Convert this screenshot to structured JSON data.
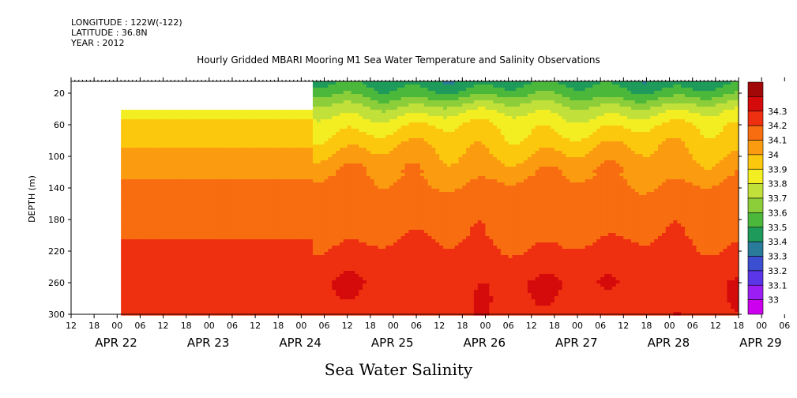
{
  "header": {
    "longitude": "LONGITUDE : 122W(-122)",
    "latitude": "LATITUDE : 36.8N",
    "year": "YEAR : 2012"
  },
  "chart_data": {
    "type": "heatmap",
    "title": "Hourly Gridded MBARI Mooring M1 Sea Water Temperature and Salinity Observations",
    "caption": "Sea Water Salinity",
    "xlabel": "",
    "ylabel": "DEPTH (m)",
    "variable": "Sea Water Salinity",
    "x_range_hours": [
      0,
      174
    ],
    "x_hour_ticks": [
      "12",
      "18",
      "00",
      "06",
      "12",
      "18",
      "00",
      "06",
      "12",
      "18",
      "00",
      "06",
      "12",
      "18",
      "00",
      "06",
      "12",
      "18",
      "00",
      "06",
      "12",
      "18",
      "00",
      "06",
      "12",
      "18",
      "00",
      "06",
      "12",
      "18",
      "00",
      "06",
      "12",
      "18",
      "00",
      "06",
      "12"
    ],
    "date_labels": [
      "APR 22",
      "APR 23",
      "APR 24",
      "APR 25",
      "APR 26",
      "APR 27",
      "APR 28",
      "APR 29"
    ],
    "ylim": [
      300,
      5
    ],
    "y_ticks": [
      20,
      60,
      100,
      140,
      180,
      220,
      260,
      300
    ],
    "colorbar": {
      "levels": [
        33,
        33.1,
        33.2,
        33.3,
        33.4,
        33.5,
        33.6,
        33.7,
        33.8,
        33.9,
        34,
        34.1,
        34.2,
        34.3
      ],
      "colors": [
        "#cc00ee",
        "#9b1ff5",
        "#5a36e8",
        "#3c4fd0",
        "#2a7a9a",
        "#1e9b5a",
        "#4cb83b",
        "#8cce3a",
        "#c2e03a",
        "#f2ee22",
        "#fcc80e",
        "#fb9c10",
        "#f86d10",
        "#ef3010",
        "#d50a0a",
        "#a30808"
      ]
    },
    "profile_early": [
      {
        "depth": 5,
        "value": null
      },
      {
        "depth": 40,
        "value": 33.85
      },
      {
        "depth": 60,
        "value": 33.92
      },
      {
        "depth": 80,
        "value": 33.97
      },
      {
        "depth": 100,
        "value": 34.03
      },
      {
        "depth": 120,
        "value": 34.08
      },
      {
        "depth": 140,
        "value": 34.12
      },
      {
        "depth": 220,
        "value": 34.22
      },
      {
        "depth": 240,
        "value": 34.25
      },
      {
        "depth": 300,
        "value": 34.28
      }
    ],
    "profile_late": [
      {
        "depth": 5,
        "value": 33.45
      },
      {
        "depth": 20,
        "value": 33.55
      },
      {
        "depth": 40,
        "value": 33.75
      },
      {
        "depth": 60,
        "value": 33.88
      },
      {
        "depth": 80,
        "value": 33.95
      },
      {
        "depth": 100,
        "value": 34.02
      },
      {
        "depth": 120,
        "value": 34.08
      },
      {
        "depth": 150,
        "value": 34.14
      },
      {
        "depth": 200,
        "value": 34.18
      },
      {
        "depth": 230,
        "value": 34.24
      },
      {
        "depth": 260,
        "value": 34.29
      },
      {
        "depth": 300,
        "value": 34.27
      }
    ],
    "data_start_hour": 13,
    "regime_change_hour": 63
  }
}
